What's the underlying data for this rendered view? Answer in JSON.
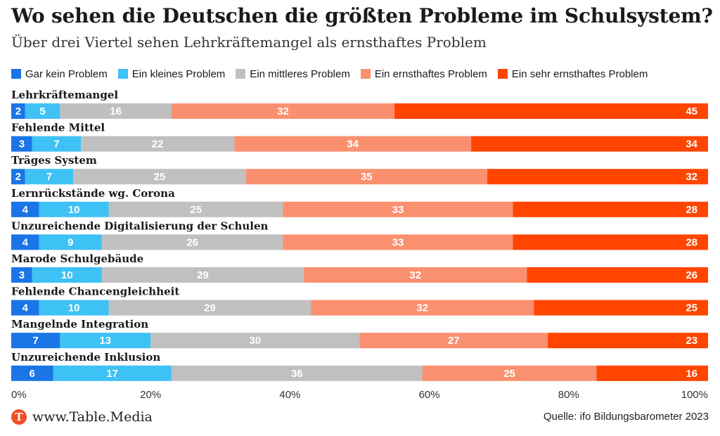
{
  "title": "Wo sehen die Deutschen die größten Probleme im Schulsystem?",
  "subtitle": "Über drei Viertel sehen Lehrkräftemangel als ernsthaftes Problem",
  "footer": {
    "logo_letter": "T",
    "site": "www.Table.Media",
    "source": "Quelle: ifo Bildungsbarometer 2023"
  },
  "chart_data": {
    "type": "bar",
    "orientation": "horizontal",
    "stacked": true,
    "categories": [
      "Lehrkräftemangel",
      "Fehlende Mittel",
      "Träges System",
      "Lernrückstände wg. Corona",
      "Unzureichende Digitalisierung der Schulen",
      "Marode Schulgebäude",
      "Fehlende Chancengleichheit",
      "Mangelnde Integration",
      "Unzureichende Inklusion"
    ],
    "series": [
      {
        "name": "Gar kein Problem",
        "color": "#1a75e6",
        "values": [
          2,
          3,
          2,
          4,
          4,
          3,
          4,
          7,
          6
        ]
      },
      {
        "name": "Ein kleines Problem",
        "color": "#3ec1f5",
        "values": [
          5,
          7,
          7,
          10,
          9,
          10,
          10,
          13,
          17
        ]
      },
      {
        "name": "Ein mittleres Problem",
        "color": "#c0c0c0",
        "values": [
          16,
          22,
          25,
          25,
          26,
          29,
          29,
          30,
          36
        ]
      },
      {
        "name": "Ein ernsthaftes Problem",
        "color": "#fa9070",
        "values": [
          32,
          34,
          35,
          33,
          33,
          32,
          32,
          27,
          25
        ]
      },
      {
        "name": "Ein sehr ernsthaftes Problem",
        "color": "#ff4500",
        "values": [
          45,
          34,
          32,
          28,
          28,
          26,
          25,
          23,
          16
        ]
      }
    ],
    "xlim": [
      0,
      100
    ],
    "xticks": [
      "0%",
      "20%",
      "40%",
      "60%",
      "80%",
      "100%"
    ],
    "legend_position": "top"
  }
}
